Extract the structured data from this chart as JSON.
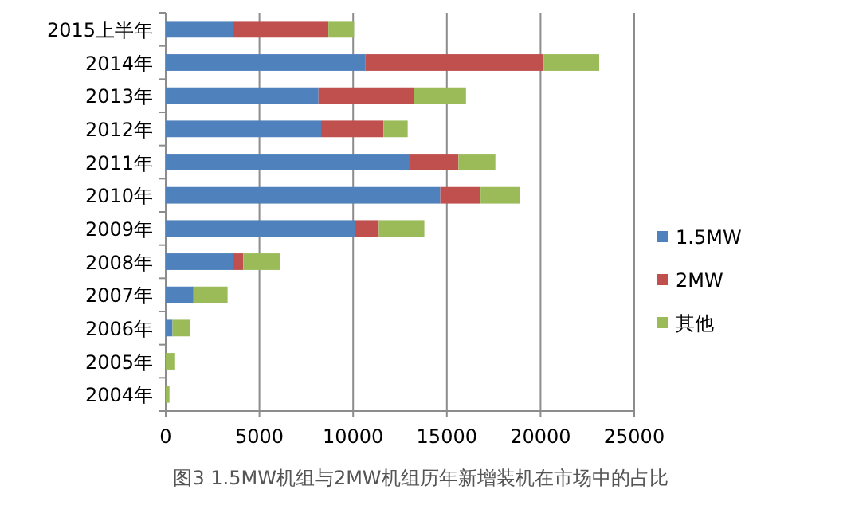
{
  "chart_data": {
    "type": "bar",
    "orientation": "horizontal",
    "stacked": true,
    "title": "图3 1.5MW机组与2MW机组历年新增装机在市场中的占比",
    "categories": [
      "2015上半年",
      "2014年",
      "2013年",
      "2012年",
      "2011年",
      "2010年",
      "2009年",
      "2008年",
      "2007年",
      "2006年",
      "2005年",
      "2004年"
    ],
    "series": [
      {
        "name": "1.5MW",
        "color": "#4f81bd",
        "values": [
          3600,
          10640,
          8150,
          8290,
          13050,
          14650,
          10080,
          3590,
          1480,
          360,
          0,
          0
        ]
      },
      {
        "name": "2MW",
        "color": "#c0504d",
        "values": [
          5080,
          9520,
          5090,
          3330,
          2570,
          2150,
          1290,
          550,
          0,
          0,
          0,
          0
        ]
      },
      {
        "name": "其他",
        "color": "#9bbb59",
        "values": [
          1370,
          2970,
          2780,
          1290,
          1970,
          2100,
          2430,
          1960,
          1820,
          930,
          500,
          200
        ]
      }
    ],
    "xlim": [
      0,
      25000
    ],
    "xticks": [
      0,
      5000,
      10000,
      15000,
      20000,
      25000
    ],
    "grid": "x",
    "legend": "right"
  }
}
